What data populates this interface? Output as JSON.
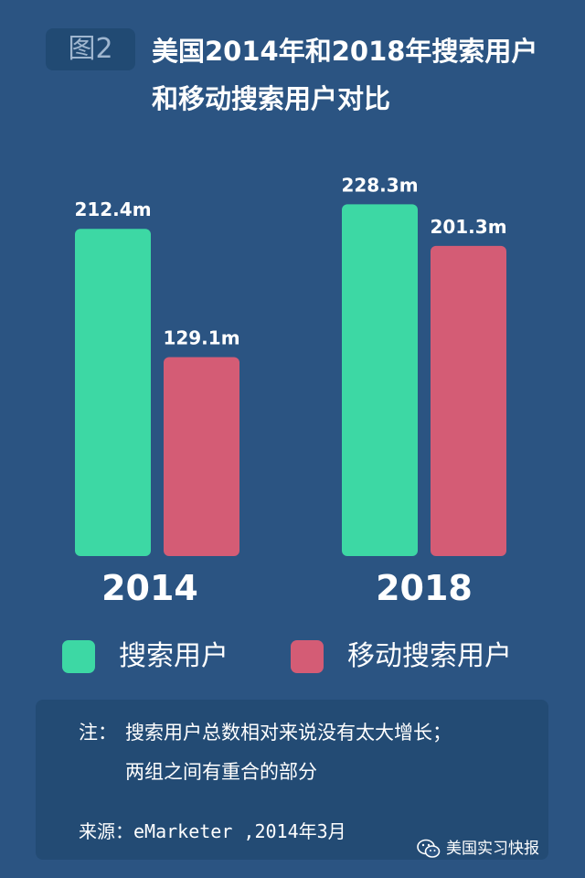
{
  "figure_tag": "图2",
  "title_line1": "美国2014年和2018年搜索用户",
  "title_line2": "和移动搜索用户对比",
  "chart_data": {
    "type": "bar",
    "categories": [
      "2014",
      "2018"
    ],
    "series": [
      {
        "name": "搜索用户",
        "values": [
          212.4,
          228.3
        ],
        "labels": [
          "212.4m",
          "228.3m"
        ],
        "color": "#3dd8a4"
      },
      {
        "name": "移动搜索用户",
        "values": [
          129.1,
          201.3
        ],
        "labels": [
          "129.1m",
          "201.3m"
        ],
        "color": "#d45c75"
      }
    ],
    "ylim": [
      0,
      250
    ],
    "grid": false,
    "legend": "bottom"
  },
  "note": {
    "lead": "注：",
    "line1": "搜索用户总数相对来说没有太大增长；",
    "line2": "两组之间有重合的部分"
  },
  "source": "来源：eMarketer ,2014年3月",
  "watermark": "美国实习快报"
}
